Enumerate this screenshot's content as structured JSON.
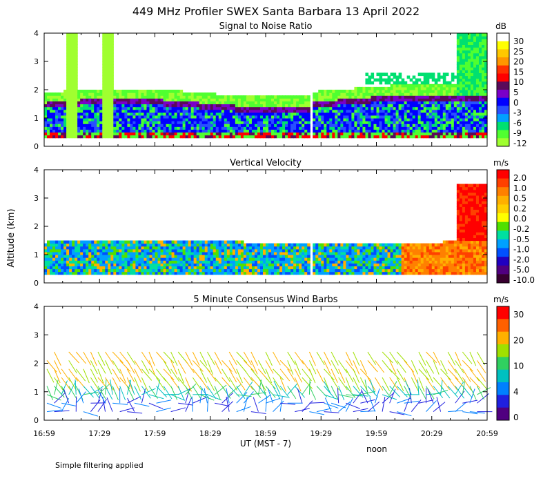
{
  "main_title": "449 MHz Profiler SWEX Santa Barbara 13 April 2022",
  "y_axis_label": "Altitude (km)",
  "x_axis_label": "UT  (MST - 7)",
  "noon_label": "noon",
  "footer_note": "Simple filtering applied",
  "chart_data": [
    {
      "type": "heatmap",
      "title": "Signal to Noise Ratio",
      "colorbar_unit": "dB",
      "colorbar_ticks": [
        "30",
        "25",
        "20",
        "15",
        "10",
        "5",
        "0",
        "-3",
        "-6",
        "-9",
        "-12"
      ],
      "colors": [
        "#ffffff",
        "#ffff00",
        "#ffc800",
        "#ff9600",
        "#ff3000",
        "#ff0000",
        "#5a0a5a",
        "#7a00c8",
        "#0000ff",
        "#2850ff",
        "#00a0ff",
        "#00e070",
        "#50ff30",
        "#a0ff30"
      ],
      "ylim": [
        0,
        4
      ],
      "yticks": [
        "0",
        "1",
        "2",
        "3",
        "4"
      ]
    },
    {
      "type": "heatmap",
      "title": "Vertical Velocity",
      "colorbar_unit": "m/s",
      "colorbar_ticks": [
        "2.0",
        "1.0",
        "0.5",
        "0.2",
        "0.0",
        "-0.2",
        "-0.5",
        "-1.0",
        "-2.0",
        "-5.0",
        "-10.0"
      ],
      "colors": [
        "#ff0000",
        "#ff4000",
        "#ff8000",
        "#ffb000",
        "#ffd000",
        "#ffff00",
        "#50e000",
        "#00e0a0",
        "#00a0ff",
        "#0050ff",
        "#2000c0",
        "#500080",
        "#380030"
      ],
      "ylim": [
        0,
        4
      ],
      "yticks": [
        "0",
        "1",
        "2",
        "3",
        "4"
      ]
    },
    {
      "type": "wind_barbs",
      "title": "5 Minute Consensus Wind Barbs",
      "colorbar_unit": "m/s",
      "colorbar_ticks": [
        "30",
        "20",
        "10",
        "4",
        "0"
      ],
      "colors": [
        "#ff0000",
        "#ff6000",
        "#ffb000",
        "#a0e000",
        "#30d060",
        "#00c0c0",
        "#0080ff",
        "#2020e0",
        "#500080"
      ],
      "ylim": [
        0,
        4
      ],
      "yticks": [
        "0",
        "1",
        "2",
        "3",
        "4"
      ]
    }
  ],
  "x_ticks": [
    "16:59",
    "17:29",
    "17:59",
    "18:29",
    "18:59",
    "19:29",
    "19:59",
    "20:29",
    "20:59"
  ]
}
